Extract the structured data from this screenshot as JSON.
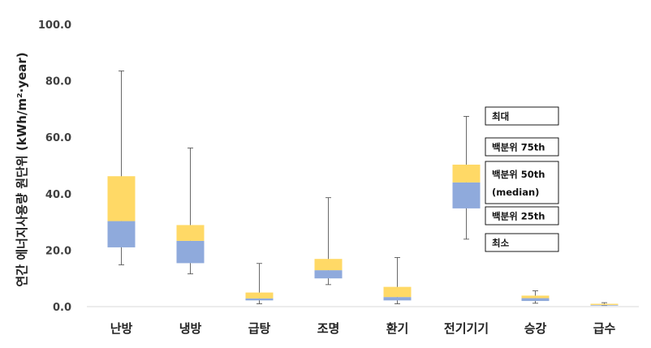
{
  "chart_data": {
    "type": "boxplot",
    "ylabel": "연간 에너지사용량 원단위 (kWh/m²·year)",
    "ylim": [
      0,
      100
    ],
    "yticks": [
      "0.0",
      "20.0",
      "40.0",
      "60.0",
      "80.0",
      "100.0"
    ],
    "categories": [
      "난방",
      "냉방",
      "급탕",
      "조명",
      "환기",
      "전기기기",
      "승강",
      "급수"
    ],
    "series": [
      {
        "min": 14.8,
        "q1": 21.0,
        "median": 30.3,
        "q3": 46.2,
        "max": 83.5
      },
      {
        "min": 11.6,
        "q1": 15.4,
        "median": 23.3,
        "q3": 28.9,
        "max": 56.2
      },
      {
        "min": 1.0,
        "q1": 2.2,
        "median": 2.9,
        "q3": 5.0,
        "max": 15.3
      },
      {
        "min": 7.8,
        "q1": 10.0,
        "median": 12.9,
        "q3": 16.9,
        "max": 38.6
      },
      {
        "min": 1.0,
        "q1": 2.2,
        "median": 3.4,
        "q3": 7.0,
        "max": 17.4
      },
      {
        "min": 23.9,
        "q1": 34.8,
        "median": 44.0,
        "q3": 50.3,
        "max": 67.4
      },
      {
        "min": 1.2,
        "q1": 2.0,
        "median": 3.0,
        "q3": 3.9,
        "max": 5.6
      },
      {
        "min": 0.4,
        "q1": 0.5,
        "median": 0.6,
        "q3": 1.0,
        "max": 1.4
      }
    ],
    "legend": [
      {
        "label": "최대"
      },
      {
        "label": "백분위 75th"
      },
      {
        "label": "백분위 50th",
        "label2": "(median)"
      },
      {
        "label": "백분위 25th"
      },
      {
        "label": "최소"
      }
    ],
    "colors": {
      "upper": "#FFD966",
      "lower": "#8FAADC",
      "whisker": "#595959",
      "axis": "#D9D9D9"
    }
  }
}
